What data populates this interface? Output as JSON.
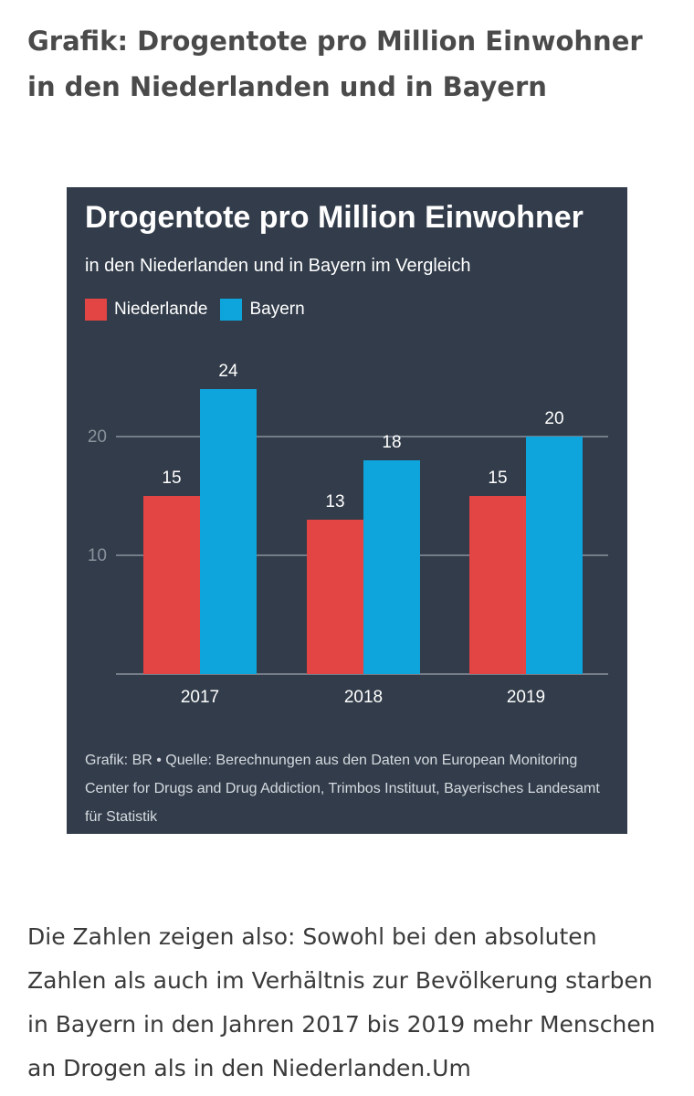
{
  "heading": "Grafik: Drogentote pro Million Einwohner in den Niederlanden und in Bayern",
  "body_text": "Die Zahlen zeigen also: Sowohl bei den absoluten Zahlen als auch im Verhältnis zur Bevölkerung starben in Bayern in den Jahren 2017 bis 2019 mehr Menschen an Drogen als in den Niederlanden.Um",
  "chart_data": {
    "type": "bar",
    "title": "Drogentote pro Million Einwohner",
    "subtitle": "in den Niederlanden und in Bayern im Vergleich",
    "categories": [
      "2017",
      "2018",
      "2019"
    ],
    "series": [
      {
        "name": "Niederlande",
        "color": "#e34444",
        "values": [
          15,
          13,
          15
        ]
      },
      {
        "name": "Bayern",
        "color": "#0ea5dd",
        "values": [
          24,
          18,
          20
        ]
      }
    ],
    "xlabel": "",
    "ylabel": "",
    "ylim": [
      0,
      25
    ],
    "yticks": [
      10,
      20
    ],
    "grid": true,
    "legend": "top-left",
    "source": "Grafik: BR • Quelle: Berechnungen aus den Daten von European Monitoring Center for Drugs and Drug Addiction, Trimbos Instituut, Bayerisches Landesamt für Statistik"
  },
  "colors": {
    "card_background": "#323c4a",
    "gridline": "#8a929c",
    "text": "#ffffff"
  }
}
